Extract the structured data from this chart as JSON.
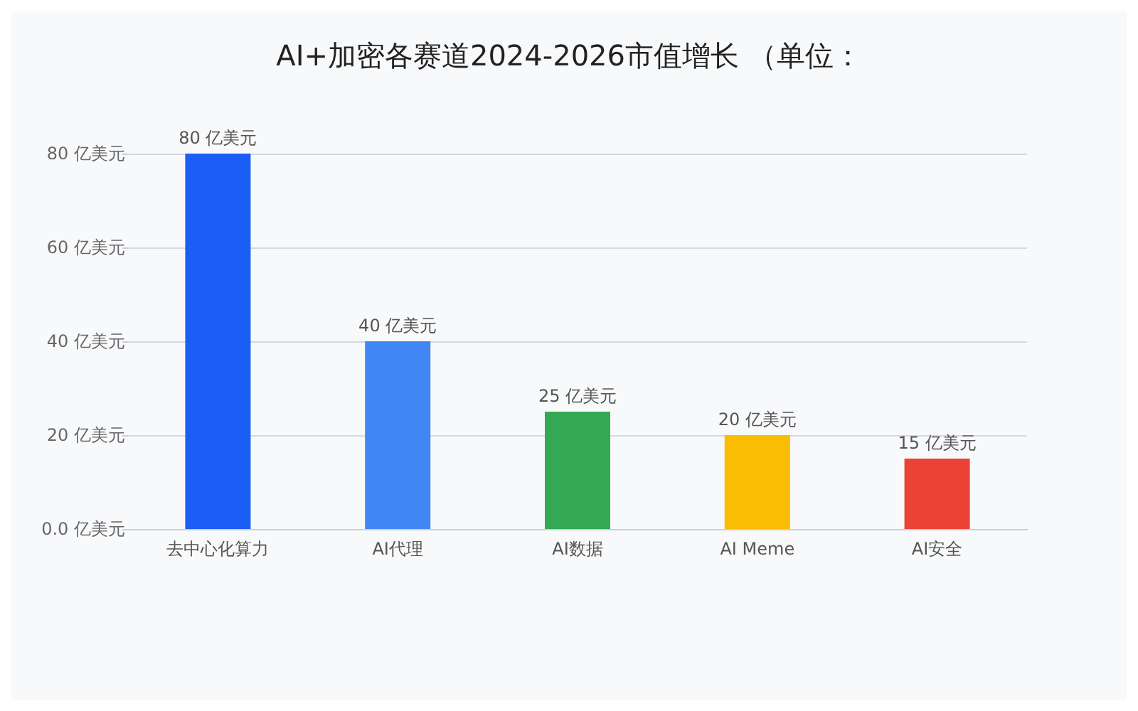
{
  "chart_data": {
    "type": "bar",
    "title": "AI+加密各赛道2024-2026市值增长 （单位：",
    "categories": [
      "去中心化算力",
      "AI代理",
      "AI数据",
      "AI Meme",
      "AI安全"
    ],
    "values": [
      80,
      40,
      25,
      20,
      15
    ],
    "colors": [
      "#1a5ef5",
      "#4285f4",
      "#34a853",
      "#fbbc04",
      "#ea4335"
    ],
    "value_labels": [
      "80 亿美元",
      "40 亿美元",
      "25 亿美元",
      "20 亿美元",
      "15 亿美元"
    ],
    "ylim": [
      0,
      80
    ],
    "yticks": [
      {
        "value": 0,
        "label": "0.0 亿美元"
      },
      {
        "value": 20,
        "label": "20 亿美元"
      },
      {
        "value": 40,
        "label": "40 亿美元"
      },
      {
        "value": 60,
        "label": "60 亿美元"
      },
      {
        "value": 80,
        "label": "80 亿美元"
      }
    ],
    "grid": "y"
  }
}
